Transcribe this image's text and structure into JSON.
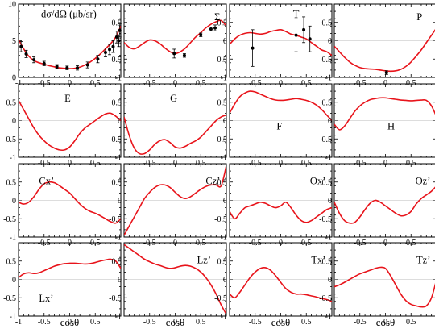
{
  "figure": {
    "xlabel": "cosθ",
    "line_color": "#e8141b",
    "point_color": "#000000"
  },
  "chart_data": [
    {
      "type": "line",
      "title": "dσ/dΩ (μb/sr)",
      "xlim": [
        -1,
        1
      ],
      "ylim": [
        0,
        10
      ],
      "xticks": [
        -1,
        -0.5,
        0,
        0.5
      ],
      "xticklabels": [
        "-1",
        "-0.5",
        "0",
        "0.5"
      ],
      "yticks": [
        0,
        5,
        10
      ],
      "yticklabels": [
        "0",
        "5",
        "10"
      ],
      "x": [
        -1,
        -0.9,
        -0.8,
        -0.7,
        -0.6,
        -0.5,
        -0.4,
        -0.3,
        -0.2,
        -0.1,
        0,
        0.1,
        0.2,
        0.3,
        0.4,
        0.5,
        0.6,
        0.7,
        0.8,
        0.9,
        1
      ],
      "y": [
        5.2,
        3.9,
        2.9,
        2.3,
        2.0,
        1.8,
        1.6,
        1.45,
        1.3,
        1.25,
        1.2,
        1.25,
        1.4,
        1.7,
        2.1,
        2.6,
        3.2,
        3.9,
        4.6,
        5.5,
        7.0
      ],
      "points": [
        {
          "x": -0.95,
          "y": 4.2,
          "err": 0.7
        },
        {
          "x": -0.85,
          "y": 3.2,
          "err": 0.5
        },
        {
          "x": -0.7,
          "y": 2.4,
          "err": 0.4
        },
        {
          "x": -0.5,
          "y": 1.9,
          "err": 0.3
        },
        {
          "x": -0.25,
          "y": 1.5,
          "err": 0.25
        },
        {
          "x": -0.05,
          "y": 1.3,
          "err": 0.25
        },
        {
          "x": 0.15,
          "y": 1.3,
          "err": 0.3
        },
        {
          "x": 0.35,
          "y": 1.7,
          "err": 0.4
        },
        {
          "x": 0.55,
          "y": 2.5,
          "err": 0.5
        },
        {
          "x": 0.7,
          "y": 3.4,
          "err": 0.6
        },
        {
          "x": 0.78,
          "y": 3.8,
          "err": 0.7
        },
        {
          "x": 0.85,
          "y": 4.2,
          "err": 0.8
        },
        {
          "x": 0.92,
          "y": 5.5,
          "err": 0.8
        },
        {
          "x": 0.96,
          "y": 5.0,
          "err": 0.8
        },
        {
          "x": 0.98,
          "y": 6.4,
          "err": 0.9
        }
      ]
    },
    {
      "type": "line",
      "title": "Σ",
      "xlim": [
        -1,
        1
      ],
      "ylim": [
        -1,
        1
      ],
      "xticks": [
        -0.5,
        0,
        0.5
      ],
      "xticklabels": [
        "-0.5",
        "0",
        "0.5"
      ],
      "yticks": [
        -1,
        -0.5,
        0,
        0.5
      ],
      "yticklabels": [
        "-1",
        "-0.5",
        "0",
        "0.5"
      ],
      "x": [
        -1,
        -0.9,
        -0.8,
        -0.7,
        -0.6,
        -0.5,
        -0.4,
        -0.3,
        -0.2,
        -0.1,
        0,
        0.1,
        0.2,
        0.3,
        0.4,
        0.5,
        0.6,
        0.7,
        0.8,
        0.9,
        1
      ],
      "y": [
        -0.05,
        -0.18,
        -0.22,
        -0.15,
        -0.05,
        0.02,
        0.0,
        -0.08,
        -0.2,
        -0.3,
        -0.35,
        -0.3,
        -0.2,
        -0.05,
        0.1,
        0.22,
        0.35,
        0.45,
        0.52,
        0.55,
        0.4
      ],
      "points": [
        {
          "x": -0.02,
          "y": -0.35,
          "err": 0.12
        },
        {
          "x": 0.18,
          "y": -0.4,
          "err": 0.05
        },
        {
          "x": 0.5,
          "y": 0.16,
          "err": 0.05
        },
        {
          "x": 0.7,
          "y": 0.32,
          "err": 0.05
        },
        {
          "x": 0.78,
          "y": 0.35,
          "err": 0.08
        }
      ]
    },
    {
      "type": "line",
      "title": "T",
      "xlim": [
        -1,
        1
      ],
      "ylim": [
        -1,
        1
      ],
      "xticks": [
        -0.5,
        0,
        0.5
      ],
      "xticklabels": [
        "-0.5",
        "0",
        "0.5"
      ],
      "yticks": [
        -1,
        -0.5,
        0,
        0.5
      ],
      "yticklabels": [
        "-1",
        "-0.5",
        "0",
        "0.5"
      ],
      "x": [
        -1,
        -0.9,
        -0.8,
        -0.7,
        -0.6,
        -0.5,
        -0.4,
        -0.3,
        -0.2,
        -0.1,
        0,
        0.1,
        0.2,
        0.3,
        0.4,
        0.5,
        0.6,
        0.7,
        0.8,
        0.9,
        1
      ],
      "y": [
        -0.1,
        0.05,
        0.15,
        0.2,
        0.22,
        0.2,
        0.18,
        0.2,
        0.25,
        0.28,
        0.3,
        0.25,
        0.18,
        0.15,
        0.1,
        0.05,
        -0.05,
        -0.15,
        -0.25,
        -0.3,
        -0.4
      ],
      "points": [
        {
          "x": -0.55,
          "y": -0.2,
          "err": 0.5
        },
        {
          "x": 0.3,
          "y": 0.15,
          "err": 0.45
        },
        {
          "x": 0.45,
          "y": 0.3,
          "err": 0.35
        },
        {
          "x": 0.57,
          "y": 0.05,
          "err": 0.35
        }
      ]
    },
    {
      "type": "line",
      "title": "P",
      "xlim": [
        -1,
        1
      ],
      "ylim": [
        -1,
        1
      ],
      "xticks": [
        -0.5,
        0,
        0.5
      ],
      "xticklabels": [
        "-0.5",
        "0",
        "0.5"
      ],
      "yticks": [
        -1,
        -0.5,
        0,
        0.5
      ],
      "yticklabels": [
        "-1",
        "-0.5",
        "0",
        "0.5"
      ],
      "x": [
        -1,
        -0.9,
        -0.8,
        -0.7,
        -0.6,
        -0.5,
        -0.4,
        -0.3,
        -0.2,
        -0.1,
        0,
        0.1,
        0.2,
        0.3,
        0.4,
        0.5,
        0.6,
        0.7,
        0.8,
        0.9,
        1
      ],
      "y": [
        -0.15,
        -0.3,
        -0.45,
        -0.58,
        -0.67,
        -0.73,
        -0.76,
        -0.77,
        -0.78,
        -0.8,
        -0.82,
        -0.83,
        -0.82,
        -0.78,
        -0.7,
        -0.58,
        -0.42,
        -0.25,
        -0.05,
        0.15,
        0.35
      ],
      "points": [
        {
          "x": 0.02,
          "y": -0.87,
          "err": 0.05
        }
      ]
    },
    {
      "type": "line",
      "title": "E",
      "xlim": [
        -1,
        1
      ],
      "ylim": [
        -1,
        1
      ],
      "xticks": [
        -0.5,
        0,
        0.5
      ],
      "xticklabels": [
        "-0.5",
        "0",
        "0.5"
      ],
      "yticks": [
        -1,
        -0.5,
        0,
        0.5
      ],
      "yticklabels": [
        "-1",
        "-0.5",
        "0",
        "0.5"
      ],
      "x": [
        -1,
        -0.9,
        -0.8,
        -0.7,
        -0.6,
        -0.5,
        -0.4,
        -0.3,
        -0.2,
        -0.1,
        0,
        0.1,
        0.2,
        0.3,
        0.4,
        0.5,
        0.6,
        0.7,
        0.8,
        0.9,
        1
      ],
      "y": [
        0.55,
        0.3,
        0.05,
        -0.2,
        -0.4,
        -0.55,
        -0.67,
        -0.75,
        -0.8,
        -0.8,
        -0.72,
        -0.55,
        -0.35,
        -0.2,
        -0.1,
        0.0,
        0.1,
        0.18,
        0.2,
        0.12,
        0.0
      ]
    },
    {
      "type": "line",
      "title": "G",
      "xlim": [
        -1,
        1
      ],
      "ylim": [
        -1,
        1
      ],
      "xticks": [
        -0.5,
        0,
        0.5
      ],
      "xticklabels": [
        "-0.5",
        "0",
        "0.5"
      ],
      "yticks": [
        -1,
        -0.5,
        0,
        0.5
      ],
      "yticklabels": [
        "-1",
        "-0.5",
        "0",
        "0.5"
      ],
      "x": [
        -1,
        -0.9,
        -0.8,
        -0.7,
        -0.6,
        -0.5,
        -0.4,
        -0.3,
        -0.2,
        -0.1,
        0,
        0.1,
        0.2,
        0.3,
        0.4,
        0.5,
        0.6,
        0.7,
        0.8,
        0.9,
        1
      ],
      "y": [
        0.1,
        -0.4,
        -0.75,
        -0.9,
        -0.9,
        -0.8,
        -0.65,
        -0.55,
        -0.52,
        -0.6,
        -0.72,
        -0.75,
        -0.7,
        -0.62,
        -0.55,
        -0.45,
        -0.3,
        -0.15,
        0.0,
        0.1,
        0.15
      ]
    },
    {
      "type": "line",
      "title": "F",
      "xlim": [
        -1,
        1
      ],
      "ylim": [
        -1,
        1
      ],
      "xticks": [
        -0.5,
        0,
        0.5
      ],
      "xticklabels": [
        "-0.5",
        "0",
        "0.5"
      ],
      "yticks": [
        -1,
        -0.5,
        0,
        0.5
      ],
      "yticklabels": [
        "-1",
        "-0.5",
        "0",
        "0.5"
      ],
      "x": [
        -1,
        -0.9,
        -0.8,
        -0.7,
        -0.6,
        -0.5,
        -0.4,
        -0.3,
        -0.2,
        -0.1,
        0,
        0.1,
        0.2,
        0.3,
        0.4,
        0.5,
        0.6,
        0.7,
        0.8,
        0.9,
        1
      ],
      "y": [
        0.2,
        0.45,
        0.65,
        0.75,
        0.8,
        0.78,
        0.72,
        0.66,
        0.6,
        0.56,
        0.55,
        0.56,
        0.58,
        0.6,
        0.58,
        0.55,
        0.5,
        0.42,
        0.3,
        0.15,
        0.0
      ]
    },
    {
      "type": "line",
      "title": "H",
      "xlim": [
        -1,
        1
      ],
      "ylim": [
        -1,
        1
      ],
      "xticks": [
        -0.5,
        0,
        0.5
      ],
      "xticklabels": [
        "-0.5",
        "0",
        "0.5"
      ],
      "yticks": [
        -1,
        -0.5,
        0,
        0.5
      ],
      "yticklabels": [
        "-1",
        "-0.5",
        "0",
        "0.5"
      ],
      "x": [
        -1,
        -0.9,
        -0.8,
        -0.7,
        -0.6,
        -0.5,
        -0.4,
        -0.3,
        -0.2,
        -0.1,
        0,
        0.1,
        0.2,
        0.3,
        0.4,
        0.5,
        0.6,
        0.7,
        0.8,
        0.9,
        1
      ],
      "y": [
        -0.1,
        -0.25,
        -0.15,
        0.05,
        0.25,
        0.4,
        0.5,
        0.57,
        0.6,
        0.62,
        0.62,
        0.6,
        0.58,
        0.56,
        0.55,
        0.54,
        0.55,
        0.56,
        0.55,
        0.4,
        0.1
      ]
    },
    {
      "type": "line",
      "title": "Cx’",
      "xlim": [
        -1,
        1
      ],
      "ylim": [
        -1,
        1
      ],
      "xticks": [
        -0.5,
        0,
        0.5
      ],
      "xticklabels": [
        "-0.5",
        "0",
        "0.5"
      ],
      "yticks": [
        -1,
        -0.5,
        0,
        0.5
      ],
      "yticklabels": [
        "-1",
        "-0.5",
        "0",
        "0.5"
      ],
      "x": [
        -1,
        -0.9,
        -0.8,
        -0.7,
        -0.6,
        -0.5,
        -0.4,
        -0.3,
        -0.2,
        -0.1,
        0,
        0.1,
        0.2,
        0.3,
        0.4,
        0.5,
        0.6,
        0.7,
        0.8,
        0.9,
        1
      ],
      "y": [
        -0.05,
        -0.1,
        -0.05,
        0.1,
        0.3,
        0.45,
        0.5,
        0.48,
        0.4,
        0.3,
        0.2,
        0.05,
        -0.1,
        -0.22,
        -0.3,
        -0.35,
        -0.42,
        -0.5,
        -0.58,
        -0.62,
        -0.5
      ]
    },
    {
      "type": "line",
      "title": "Cz’",
      "xlim": [
        -1,
        1
      ],
      "ylim": [
        -1,
        1
      ],
      "xticks": [
        -0.5,
        0,
        0.5
      ],
      "xticklabels": [
        "-0.5",
        "0",
        "0.5"
      ],
      "yticks": [
        -1,
        -0.5,
        0,
        0.5
      ],
      "yticklabels": [
        "-1",
        "-0.5",
        "0",
        "0.5"
      ],
      "x": [
        -1,
        -0.9,
        -0.8,
        -0.7,
        -0.6,
        -0.5,
        -0.4,
        -0.3,
        -0.2,
        -0.1,
        0,
        0.1,
        0.2,
        0.3,
        0.4,
        0.5,
        0.6,
        0.7,
        0.8,
        0.9,
        1
      ],
      "y": [
        -0.95,
        -0.7,
        -0.45,
        -0.2,
        0.05,
        0.22,
        0.35,
        0.42,
        0.42,
        0.35,
        0.22,
        0.1,
        0.05,
        0.1,
        0.2,
        0.3,
        0.38,
        0.42,
        0.42,
        0.4,
        0.95
      ]
    },
    {
      "type": "line",
      "title": "Ox’",
      "xlim": [
        -1,
        1
      ],
      "ylim": [
        -1,
        1
      ],
      "xticks": [
        -0.5,
        0,
        0.5
      ],
      "xticklabels": [
        "-0.5",
        "0",
        "0.5"
      ],
      "yticks": [
        -1,
        -0.5,
        0,
        0.5
      ],
      "yticklabels": [
        "-1",
        "-0.5",
        "0",
        "0.5"
      ],
      "x": [
        -1,
        -0.9,
        -0.8,
        -0.7,
        -0.6,
        -0.5,
        -0.4,
        -0.3,
        -0.2,
        -0.1,
        0,
        0.1,
        0.2,
        0.3,
        0.4,
        0.5,
        0.6,
        0.7,
        0.8,
        0.9,
        1
      ],
      "y": [
        -0.3,
        -0.5,
        -0.35,
        -0.2,
        -0.15,
        -0.1,
        -0.05,
        -0.08,
        -0.15,
        -0.2,
        -0.15,
        -0.05,
        -0.2,
        -0.4,
        -0.55,
        -0.6,
        -0.55,
        -0.45,
        -0.35,
        -0.25,
        -0.2
      ]
    },
    {
      "type": "line",
      "title": "Oz’",
      "xlim": [
        -1,
        1
      ],
      "ylim": [
        -1,
        1
      ],
      "xticks": [
        -0.5,
        0,
        0.5
      ],
      "xticklabels": [
        "-0.5",
        "0",
        "0.5"
      ],
      "yticks": [
        -1,
        -0.5,
        0,
        0.5
      ],
      "yticklabels": [
        "-1",
        "-0.5",
        "0",
        "0.5"
      ],
      "x": [
        -1,
        -0.9,
        -0.8,
        -0.7,
        -0.6,
        -0.5,
        -0.4,
        -0.3,
        -0.2,
        -0.1,
        0,
        0.1,
        0.2,
        0.3,
        0.4,
        0.5,
        0.6,
        0.7,
        0.8,
        0.9,
        1
      ],
      "y": [
        -0.05,
        -0.35,
        -0.55,
        -0.62,
        -0.6,
        -0.45,
        -0.25,
        -0.08,
        0.0,
        -0.05,
        -0.15,
        -0.25,
        -0.35,
        -0.42,
        -0.4,
        -0.3,
        -0.1,
        0.05,
        0.15,
        0.25,
        0.4
      ]
    },
    {
      "type": "line",
      "title": "Lx’",
      "xlim": [
        -1,
        1
      ],
      "ylim": [
        -1,
        1
      ],
      "xticks": [
        -1,
        -0.5,
        0,
        0.5
      ],
      "xticklabels": [
        "-1",
        "-0.5",
        "0",
        "0.5"
      ],
      "yticks": [
        -1,
        -0.5,
        0,
        0.5
      ],
      "yticklabels": [
        "-1",
        "-0.5",
        "0",
        "0.5"
      ],
      "x": [
        -1,
        -0.9,
        -0.8,
        -0.7,
        -0.6,
        -0.5,
        -0.4,
        -0.3,
        -0.2,
        -0.1,
        0,
        0.1,
        0.2,
        0.3,
        0.4,
        0.5,
        0.6,
        0.7,
        0.8,
        0.9,
        1
      ],
      "y": [
        0.05,
        0.15,
        0.18,
        0.16,
        0.18,
        0.24,
        0.3,
        0.36,
        0.4,
        0.43,
        0.44,
        0.44,
        0.43,
        0.42,
        0.43,
        0.46,
        0.5,
        0.53,
        0.55,
        0.5,
        0.3
      ]
    },
    {
      "type": "line",
      "title": "Lz’",
      "xlim": [
        -1,
        1
      ],
      "ylim": [
        -1,
        1
      ],
      "xticks": [
        -0.5,
        0,
        0.5
      ],
      "xticklabels": [
        "-0.5",
        "0",
        "0.5"
      ],
      "yticks": [
        -1,
        -0.5,
        0,
        0.5
      ],
      "yticklabels": [
        "-1",
        "-0.5",
        "0",
        "0.5"
      ],
      "x": [
        -1,
        -0.9,
        -0.8,
        -0.7,
        -0.6,
        -0.5,
        -0.4,
        -0.3,
        -0.2,
        -0.1,
        0,
        0.1,
        0.2,
        0.3,
        0.4,
        0.5,
        0.6,
        0.7,
        0.8,
        0.9,
        1
      ],
      "y": [
        0.95,
        0.85,
        0.75,
        0.65,
        0.55,
        0.48,
        0.42,
        0.38,
        0.33,
        0.3,
        0.32,
        0.36,
        0.38,
        0.36,
        0.3,
        0.2,
        0.05,
        -0.15,
        -0.4,
        -0.7,
        -0.95
      ]
    },
    {
      "type": "line",
      "title": "Tx’",
      "xlim": [
        -1,
        1
      ],
      "ylim": [
        -1,
        1
      ],
      "xticks": [
        -0.5,
        0,
        0.5
      ],
      "xticklabels": [
        "-0.5",
        "0",
        "0.5"
      ],
      "yticks": [
        -1,
        -0.5,
        0,
        0.5
      ],
      "yticklabels": [
        "-1",
        "-0.5",
        "0",
        "0.5"
      ],
      "x": [
        -1,
        -0.9,
        -0.8,
        -0.7,
        -0.6,
        -0.5,
        -0.4,
        -0.3,
        -0.2,
        -0.1,
        0,
        0.1,
        0.2,
        0.3,
        0.4,
        0.5,
        0.6,
        0.7,
        0.8,
        0.9,
        1
      ],
      "y": [
        -0.4,
        -0.5,
        -0.35,
        -0.15,
        0.05,
        0.2,
        0.3,
        0.32,
        0.25,
        0.1,
        -0.08,
        -0.25,
        -0.35,
        -0.4,
        -0.4,
        -0.42,
        -0.45,
        -0.48,
        -0.52,
        -0.55,
        -0.6
      ]
    },
    {
      "type": "line",
      "title": "Tz’",
      "xlim": [
        -1,
        1
      ],
      "ylim": [
        -1,
        1
      ],
      "xticks": [
        -0.5,
        0,
        0.5
      ],
      "xticklabels": [
        "-0.5",
        "0",
        "0.5"
      ],
      "yticks": [
        -1,
        -0.5,
        0,
        0.5
      ],
      "yticklabels": [
        "-1",
        "-0.5",
        "0",
        "0.5"
      ],
      "x": [
        -1,
        -0.9,
        -0.8,
        -0.7,
        -0.6,
        -0.5,
        -0.4,
        -0.3,
        -0.2,
        -0.1,
        0,
        0.1,
        0.2,
        0.3,
        0.4,
        0.5,
        0.6,
        0.7,
        0.8,
        0.9,
        1
      ],
      "y": [
        -0.2,
        -0.15,
        -0.08,
        0.0,
        0.08,
        0.15,
        0.2,
        0.25,
        0.3,
        0.33,
        0.3,
        0.1,
        -0.15,
        -0.4,
        -0.58,
        -0.68,
        -0.72,
        -0.75,
        -0.72,
        -0.5,
        0.0
      ]
    }
  ]
}
